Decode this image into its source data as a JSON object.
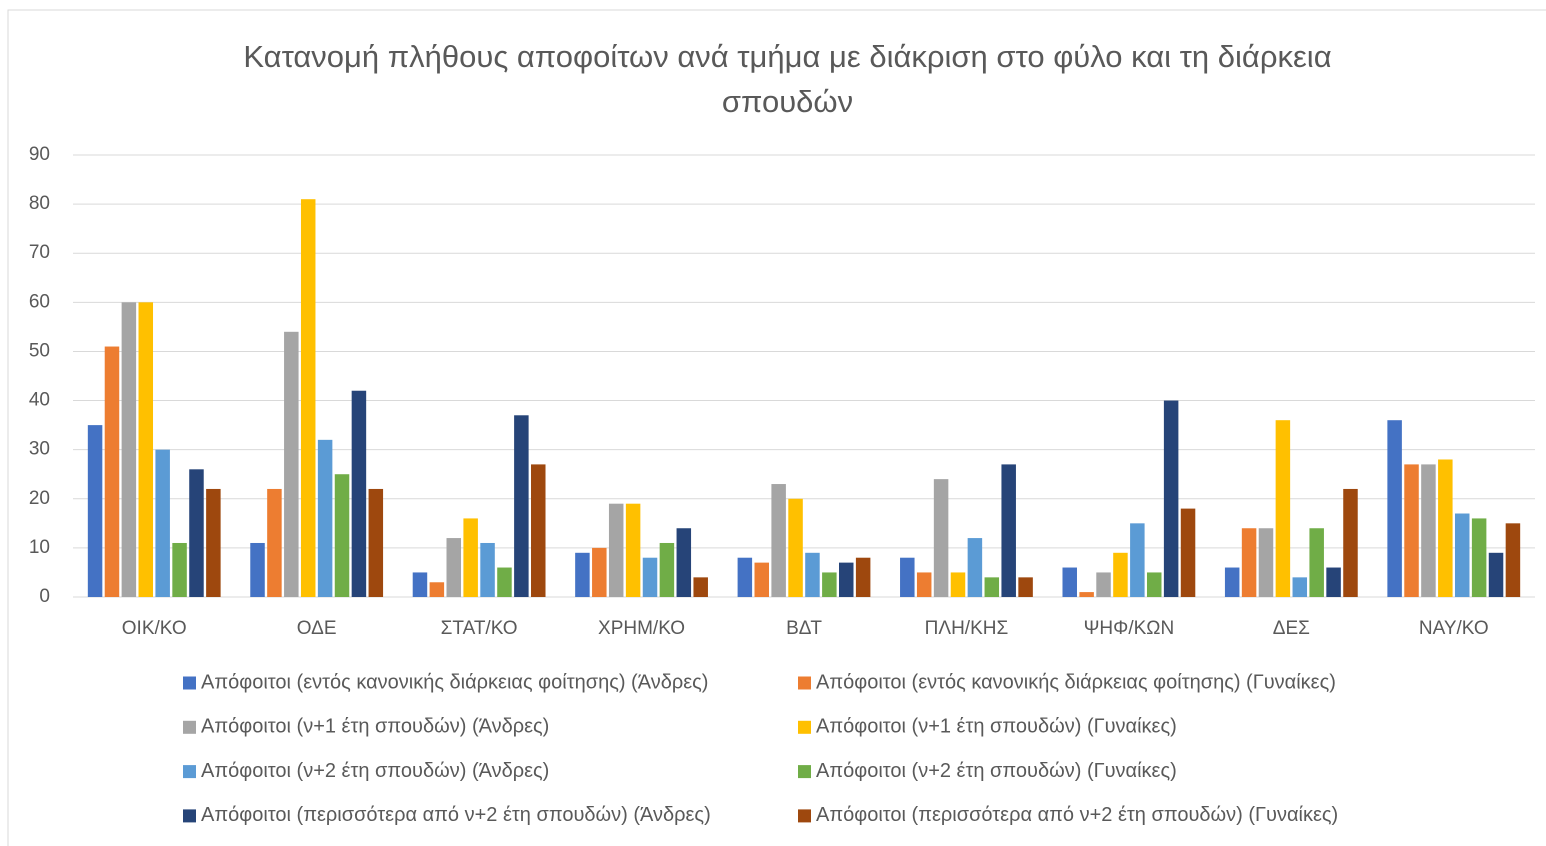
{
  "chart_data": {
    "type": "bar",
    "title": "Κατανομή πλήθους αποφοίτων ανά τμήμα με διάκριση στο φύλο και τη διάρκεια σπουδών",
    "categories": [
      "ΟΙΚ/ΚΟ",
      "ΟΔΕ",
      "ΣΤΑΤ/ΚΟ",
      "ΧΡΗΜ/ΚΟ",
      "ΒΔΤ",
      "ΠΛΗ/ΚΗΣ",
      "ΨΗΦ/ΚΩΝ",
      "ΔΕΣ",
      "ΝΑΥ/ΚΟ"
    ],
    "series": [
      {
        "name": "Απόφοιτοι (εντός κανονικής διάρκειας φοίτησης) (Άνδρες)",
        "color": "#4472c4",
        "values": [
          35,
          11,
          5,
          9,
          8,
          8,
          6,
          6,
          36
        ]
      },
      {
        "name": "Απόφοιτοι (εντός κανονικής διάρκειας φοίτησης) (Γυναίκες)",
        "color": "#ed7d31",
        "values": [
          51,
          22,
          3,
          10,
          7,
          5,
          1,
          14,
          27
        ]
      },
      {
        "name": "Απόφοιτοι (ν+1 έτη σπουδών) (Άνδρες)",
        "color": "#a5a5a5",
        "values": [
          60,
          54,
          12,
          19,
          23,
          24,
          5,
          14,
          27
        ]
      },
      {
        "name": "Απόφοιτοι (ν+1 έτη σπουδών) (Γυναίκες)",
        "color": "#ffc000",
        "values": [
          60,
          81,
          16,
          19,
          20,
          5,
          9,
          36,
          28
        ]
      },
      {
        "name": "Απόφοιτοι (ν+2 έτη σπουδών) (Άνδρες)",
        "color": "#5b9bd5",
        "values": [
          30,
          32,
          11,
          8,
          9,
          12,
          15,
          4,
          17
        ]
      },
      {
        "name": "Απόφοιτοι (ν+2 έτη σπουδών) (Γυναίκες)",
        "color": "#70ad47",
        "values": [
          11,
          25,
          6,
          11,
          5,
          4,
          5,
          14,
          16
        ]
      },
      {
        "name": "Απόφοιτοι (περισσότερα από ν+2 έτη σπουδών) (Άνδρες)",
        "color": "#264478",
        "values": [
          26,
          42,
          37,
          14,
          7,
          27,
          40,
          6,
          9
        ]
      },
      {
        "name": "Απόφοιτοι (περισσότερα από ν+2 έτη σπουδών) (Γυναίκες)",
        "color": "#9e480e",
        "values": [
          22,
          22,
          27,
          4,
          8,
          4,
          18,
          22,
          15
        ]
      }
    ],
    "ylim": [
      0,
      90
    ],
    "yticks": [
      0,
      10,
      20,
      30,
      40,
      50,
      60,
      70,
      80,
      90
    ],
    "grid": true,
    "legend": "bottom"
  }
}
